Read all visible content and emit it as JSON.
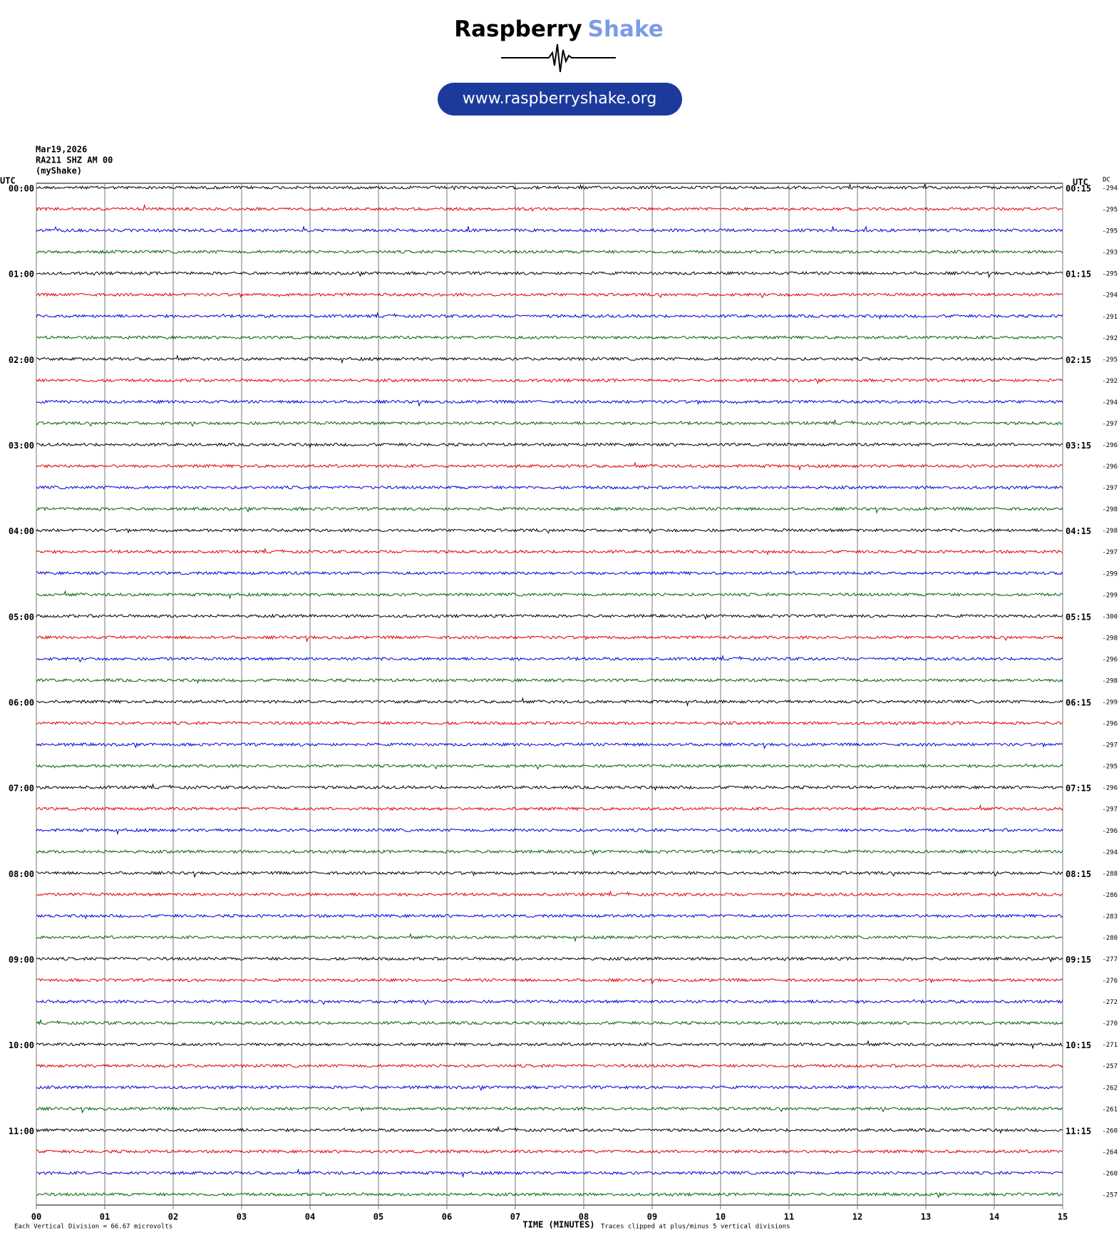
{
  "header": {
    "brand_1": "Raspberry",
    "brand_2": "Shake",
    "url": "www.raspberryshake.org"
  },
  "info": {
    "date": "Mar19,2026",
    "station": "RA211 SHZ AM 00",
    "source": "(myShake)"
  },
  "plot": {
    "left_axis_label": "UTC",
    "right_axis_label": "UTC",
    "dc_label": "DC",
    "left_hours": [
      "00:00",
      "01:00",
      "02:00",
      "03:00",
      "04:00",
      "05:00",
      "06:00",
      "07:00",
      "08:00",
      "09:00",
      "10:00",
      "11:00"
    ],
    "right_hours": [
      "00:15",
      "01:15",
      "02:15",
      "03:15",
      "04:15",
      "05:15",
      "06:15",
      "07:15",
      "08:15",
      "09:15",
      "10:15",
      "11:15"
    ],
    "dc_values": [
      -294,
      -295,
      -295,
      -293,
      -295,
      -294,
      -291,
      -292,
      -295,
      -292,
      -294,
      -297,
      -296,
      -296,
      -297,
      -298,
      -298,
      -297,
      -299,
      -299,
      -300,
      -298,
      -296,
      -298,
      -299,
      -296,
      -297,
      -295,
      -296,
      -297,
      -296,
      -294,
      -288,
      -286,
      -283,
      -280,
      -277,
      -276,
      -272,
      -270,
      -271,
      -257,
      -262,
      -261,
      -260,
      -264,
      -260,
      -257
    ],
    "trace_colors": [
      "#000000",
      "#e00000",
      "#0000d8",
      "#006400"
    ],
    "x_ticks": [
      "00",
      "01",
      "02",
      "03",
      "04",
      "05",
      "06",
      "07",
      "08",
      "09",
      "10",
      "11",
      "12",
      "13",
      "14",
      "15"
    ],
    "x_label": "TIME (MINUTES)"
  },
  "footer": {
    "division_note": "Each Vertical Division =   66.67 microvolts",
    "clip_note": "Traces clipped at plus/minus 5 vertical divisions"
  }
}
